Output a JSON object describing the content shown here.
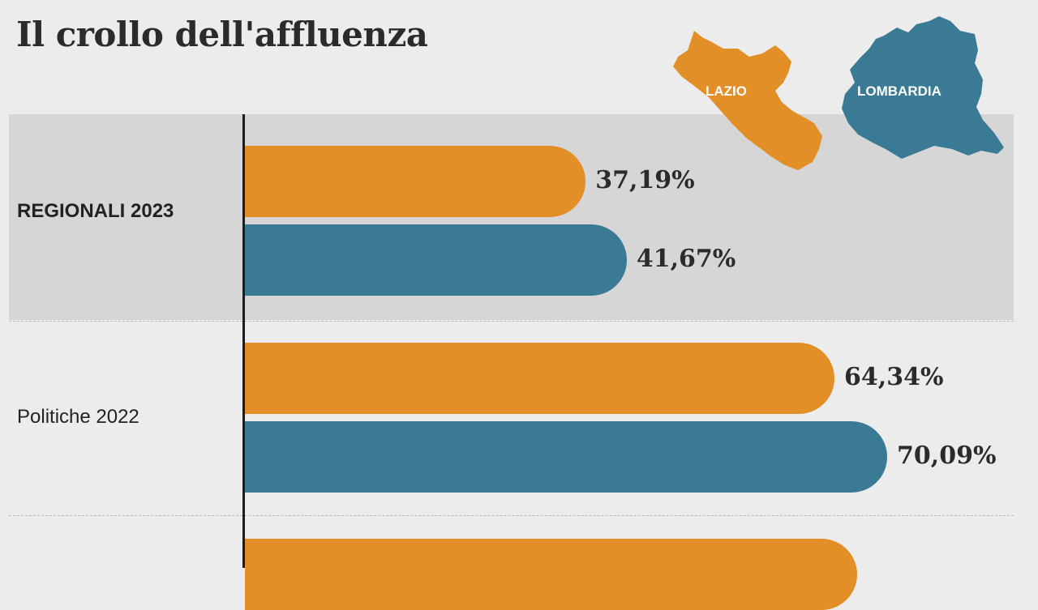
{
  "chart_data": {
    "type": "bar",
    "orientation": "horizontal",
    "title": "Il crollo dell'affluenza",
    "categories": [
      "REGIONALI 2023",
      "Politiche 2022",
      ""
    ],
    "series": [
      {
        "name": "LAZIO",
        "color": "#e38f28",
        "values": [
          37.19,
          64.34,
          null
        ],
        "labels": [
          "37,19%",
          "64,34%",
          ""
        ]
      },
      {
        "name": "LOMBARDIA",
        "color": "#3b7a95",
        "values": [
          41.67,
          70.09,
          null
        ],
        "labels": [
          "41,67%",
          "70,09%",
          ""
        ]
      }
    ],
    "xlim": [
      0,
      80
    ],
    "grid": false,
    "legend": "top-right (region maps)"
  },
  "legend": {
    "lazio_icon": "lazio-region-map",
    "lombardia_icon": "lombardia-region-map"
  }
}
